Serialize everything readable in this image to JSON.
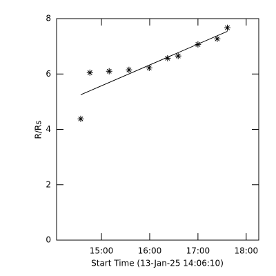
{
  "chart_data": {
    "type": "scatter",
    "xlabel": "Start Time (13-Jan-25 14:06:10)",
    "ylabel": "R/Rs",
    "xlim": [
      14.07,
      18.26
    ],
    "ylim": [
      0,
      8
    ],
    "xticks": [
      {
        "value": 15,
        "label": "15:00"
      },
      {
        "value": 16,
        "label": "16:00"
      },
      {
        "value": 17,
        "label": "17:00"
      },
      {
        "value": 18,
        "label": "18:00"
      }
    ],
    "yticks": [
      0,
      2,
      4,
      6,
      8
    ],
    "series": [
      {
        "type": "scatter",
        "color": "#000000",
        "x": [
          14.57,
          14.76,
          15.16,
          15.57,
          15.99,
          16.37,
          16.59,
          17.0,
          17.4,
          17.61
        ],
        "values": [
          4.38,
          6.05,
          6.1,
          6.15,
          6.22,
          6.57,
          6.65,
          7.07,
          7.27,
          7.67
        ]
      },
      {
        "type": "line",
        "color": "#000000",
        "x": [
          14.57,
          17.61
        ],
        "values": [
          5.25,
          7.54
        ]
      }
    ]
  }
}
